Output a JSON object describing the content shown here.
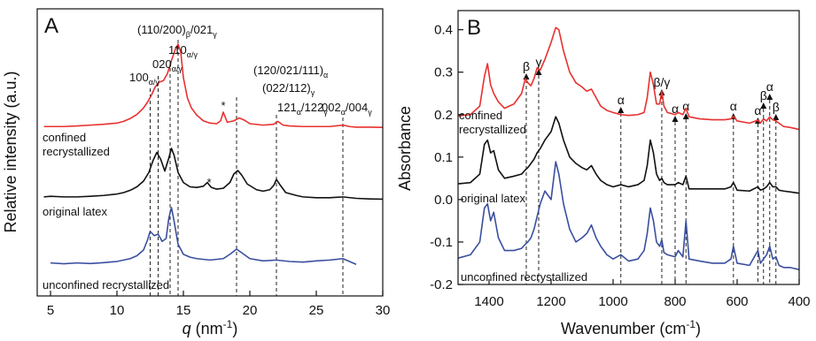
{
  "chart_data": [
    {
      "type": "line",
      "panel_label": "A",
      "ylabel": "Relative intensity (a.u.)",
      "xlabel": [
        {
          "t": "q",
          "style": "italic"
        },
        {
          "t": " (nm"
        },
        {
          "t": "-1",
          "style": "sup"
        },
        {
          "t": ")"
        }
      ],
      "xlim": [
        4,
        30
      ],
      "ylim": [
        0,
        10
      ],
      "xticks": [
        5,
        10,
        15,
        20,
        25,
        30
      ],
      "series": [
        {
          "name": "confined recrystallized",
          "color": "#e8312f",
          "x": [
            4.5,
            5,
            6,
            7,
            8,
            9,
            10,
            10.5,
            11,
            11.5,
            12,
            12.3,
            12.6,
            12.9,
            13.2,
            13.5,
            13.8,
            14.1,
            14.4,
            14.6,
            14.8,
            15.0,
            15.3,
            15.6,
            16,
            16.5,
            17,
            17.5,
            17.8,
            18,
            18.3,
            18.8,
            19.2,
            19.6,
            20,
            21,
            21.8,
            22.1,
            22.5,
            23,
            24,
            25,
            26,
            27,
            27.5,
            28,
            29,
            30
          ],
          "values": [
            5.9,
            5.9,
            5.9,
            5.92,
            5.95,
            5.98,
            6.02,
            6.08,
            6.18,
            6.32,
            6.55,
            6.75,
            7.0,
            7.3,
            7.45,
            7.5,
            7.75,
            8.2,
            8.6,
            8.77,
            8.5,
            7.6,
            6.9,
            6.55,
            6.3,
            6.1,
            6.02,
            6.0,
            6.1,
            6.4,
            6.05,
            6.1,
            6.2,
            6.12,
            6.0,
            5.95,
            5.98,
            6.08,
            5.95,
            5.92,
            5.9,
            5.9,
            5.9,
            5.95,
            5.9,
            5.88,
            5.88,
            5.87
          ]
        },
        {
          "name": "original latex",
          "color": "#111111",
          "x": [
            4.5,
            5,
            6,
            7,
            8,
            9,
            10,
            10.5,
            11,
            11.5,
            12,
            12.4,
            12.7,
            13.0,
            13.3,
            13.6,
            13.9,
            14.1,
            14.3,
            14.6,
            15,
            15.5,
            16,
            16.5,
            16.8,
            17.1,
            17.5,
            18,
            18.5,
            18.8,
            19.1,
            19.4,
            19.8,
            20.5,
            21,
            21.5,
            21.8,
            22.0,
            22.3,
            22.7,
            23.5,
            24,
            25,
            26,
            27,
            28,
            29,
            30
          ],
          "values": [
            3.45,
            3.47,
            3.45,
            3.45,
            3.47,
            3.5,
            3.55,
            3.6,
            3.68,
            3.8,
            4.0,
            4.3,
            4.7,
            5.0,
            4.75,
            4.35,
            4.8,
            5.14,
            4.9,
            4.3,
            3.95,
            3.8,
            3.78,
            3.82,
            3.95,
            3.78,
            3.72,
            3.75,
            3.95,
            4.25,
            4.37,
            4.2,
            3.9,
            3.7,
            3.65,
            3.7,
            3.85,
            4.06,
            3.85,
            3.6,
            3.5,
            3.45,
            3.42,
            3.42,
            3.45,
            3.4,
            3.38,
            3.37
          ]
        },
        {
          "name": "unconfined recrystallized",
          "color": "#3a4fa0",
          "x": [
            5,
            6,
            7,
            8,
            9,
            10,
            10.5,
            11,
            11.5,
            12,
            12.3,
            12.5,
            12.8,
            13.1,
            13.4,
            13.7,
            13.9,
            14.1,
            14.3,
            14.6,
            15,
            15.5,
            16,
            17,
            18,
            18.5,
            19,
            19.4,
            20,
            21,
            22,
            23,
            24,
            25,
            26,
            27,
            27.5,
            28
          ],
          "values": [
            1.15,
            1.12,
            1.15,
            1.13,
            1.16,
            1.2,
            1.25,
            1.3,
            1.4,
            1.6,
            1.95,
            2.25,
            2.1,
            2.15,
            1.9,
            2.0,
            2.7,
            3.08,
            2.6,
            1.8,
            1.45,
            1.35,
            1.3,
            1.25,
            1.3,
            1.45,
            1.63,
            1.5,
            1.3,
            1.22,
            1.25,
            1.2,
            1.18,
            1.22,
            1.25,
            1.3,
            1.2,
            1.1
          ]
        }
      ],
      "vlines": [
        12.5,
        13.1,
        14.0,
        14.6,
        19.0,
        22.0,
        27.0
      ],
      "annotations": [
        {
          "parts": [
            {
              "t": "(110/200)"
            },
            {
              "t": "β",
              "style": "sub"
            },
            {
              "t": "/021"
            },
            {
              "t": "γ",
              "style": "sub"
            }
          ]
        },
        {
          "parts": [
            {
              "t": "110"
            },
            {
              "t": "α/γ",
              "style": "sub"
            }
          ]
        },
        {
          "parts": [
            {
              "t": "020"
            },
            {
              "t": "α/γ",
              "style": "sub"
            }
          ]
        },
        {
          "parts": [
            {
              "t": "100"
            },
            {
              "t": "α/γ",
              "style": "sub"
            }
          ]
        },
        {
          "parts": [
            {
              "t": "(120/021/111)"
            },
            {
              "t": "α",
              "style": "sub"
            }
          ]
        },
        {
          "parts": [
            {
              "t": "(022/112)"
            },
            {
              "t": "γ",
              "style": "sub"
            }
          ]
        },
        {
          "parts": [
            {
              "t": "121"
            },
            {
              "t": "α",
              "style": "sub"
            },
            {
              "t": "/122"
            },
            {
              "t": "γ",
              "style": "sub"
            }
          ]
        },
        {
          "parts": [
            {
              "t": "002"
            },
            {
              "t": "α",
              "style": "sub"
            },
            {
              "t": "/004"
            },
            {
              "t": "γ",
              "style": "sub"
            }
          ]
        },
        {
          "parts": [
            {
              "t": "*"
            }
          ]
        },
        {
          "parts": [
            {
              "t": "*"
            }
          ]
        }
      ]
    },
    {
      "type": "line",
      "panel_label": "B",
      "ylabel": "Absorbance",
      "xlabel": [
        {
          "t": "Wavenumber (cm"
        },
        {
          "t": "-1",
          "style": "sup"
        },
        {
          "t": ")"
        }
      ],
      "xlim": [
        1500,
        400
      ],
      "ylim": [
        -0.2,
        0.445
      ],
      "xticks": [
        1400,
        1200,
        1000,
        800,
        600,
        400
      ],
      "yticks": [
        -0.2,
        -0.1,
        {
          "value": 0,
          "label": "0.0"
        },
        0.1,
        0.2,
        0.3,
        0.4
      ],
      "x": [
        1500,
        1460,
        1430,
        1415,
        1405,
        1395,
        1385,
        1370,
        1350,
        1320,
        1295,
        1283,
        1275,
        1265,
        1255,
        1245,
        1235,
        1220,
        1200,
        1185,
        1175,
        1160,
        1140,
        1120,
        1100,
        1085,
        1070,
        1055,
        1040,
        1020,
        1000,
        975,
        950,
        920,
        900,
        890,
        880,
        870,
        860,
        850,
        843,
        836,
        825,
        800,
        790,
        775,
        765,
        755,
        720,
        680,
        640,
        620,
        612,
        600,
        560,
        533,
        525,
        515,
        505,
        495,
        485,
        475,
        465,
        450,
        430,
        400
      ],
      "series": [
        {
          "name": "confined recrystallized",
          "color": "#e8312f",
          "values": [
            0.197,
            0.2,
            0.22,
            0.29,
            0.32,
            0.27,
            0.25,
            0.23,
            0.215,
            0.225,
            0.25,
            0.285,
            0.275,
            0.268,
            0.285,
            0.31,
            0.305,
            0.33,
            0.37,
            0.405,
            0.4,
            0.35,
            0.3,
            0.275,
            0.265,
            0.255,
            0.26,
            0.24,
            0.22,
            0.21,
            0.205,
            0.2,
            0.198,
            0.2,
            0.205,
            0.24,
            0.3,
            0.27,
            0.225,
            0.225,
            0.255,
            0.22,
            0.205,
            0.2,
            0.205,
            0.2,
            0.215,
            0.195,
            0.19,
            0.188,
            0.188,
            0.19,
            0.196,
            0.185,
            0.18,
            0.187,
            0.18,
            0.19,
            0.185,
            0.195,
            0.188,
            0.185,
            0.18,
            0.172,
            0.17,
            0.165
          ]
        },
        {
          "name": "original latex",
          "color": "#111111",
          "values": [
            0.037,
            0.04,
            0.06,
            0.13,
            0.14,
            0.11,
            0.115,
            0.07,
            0.05,
            0.055,
            0.06,
            0.07,
            0.075,
            0.085,
            0.095,
            0.11,
            0.12,
            0.14,
            0.16,
            0.195,
            0.18,
            0.14,
            0.1,
            0.085,
            0.075,
            0.07,
            0.08,
            0.06,
            0.045,
            0.035,
            0.03,
            0.035,
            0.03,
            0.035,
            0.045,
            0.08,
            0.14,
            0.11,
            0.06,
            0.045,
            0.05,
            0.04,
            0.035,
            0.035,
            0.04,
            0.035,
            0.055,
            0.025,
            0.025,
            0.025,
            0.025,
            0.03,
            0.04,
            0.022,
            0.02,
            0.03,
            0.022,
            0.025,
            0.03,
            0.04,
            0.03,
            0.03,
            0.022,
            0.02,
            0.018,
            0.015
          ]
        },
        {
          "name": "unconfined recrystallized",
          "color": "#3a4fa0",
          "values": [
            -0.138,
            -0.13,
            -0.1,
            -0.02,
            -0.01,
            -0.05,
            -0.03,
            -0.09,
            -0.12,
            -0.12,
            -0.115,
            -0.105,
            -0.1,
            -0.09,
            -0.07,
            -0.04,
            -0.01,
            0.02,
            0.0,
            0.089,
            0.06,
            -0.01,
            -0.07,
            -0.1,
            -0.09,
            -0.08,
            -0.06,
            -0.09,
            -0.11,
            -0.13,
            -0.14,
            -0.13,
            -0.145,
            -0.14,
            -0.12,
            -0.08,
            -0.02,
            -0.05,
            -0.1,
            -0.11,
            -0.095,
            -0.125,
            -0.13,
            -0.135,
            -0.12,
            -0.135,
            -0.05,
            -0.14,
            -0.145,
            -0.15,
            -0.15,
            -0.14,
            -0.11,
            -0.15,
            -0.155,
            -0.12,
            -0.15,
            -0.14,
            -0.13,
            -0.11,
            -0.14,
            -0.135,
            -0.155,
            -0.16,
            -0.16,
            -0.165
          ]
        }
      ],
      "vlines": [
        1280,
        1240,
        975,
        843,
        800,
        765,
        612,
        533,
        515,
        495,
        475
      ],
      "vline_labels": [
        "β",
        "γ",
        "α",
        "β/γ",
        "α",
        "α",
        "α",
        "α",
        "β",
        "α",
        "β"
      ]
    }
  ]
}
